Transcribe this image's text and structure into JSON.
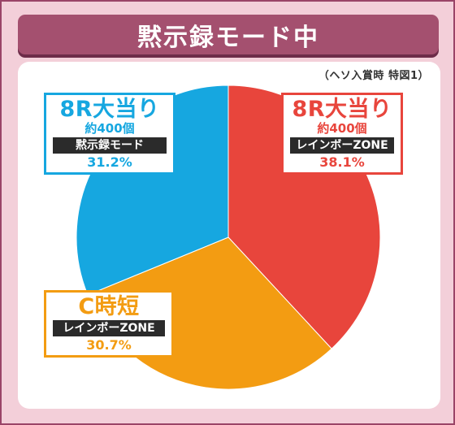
{
  "title": "黙示録モード中",
  "note": "（ヘソ入賞時 特図1）",
  "chart_data": {
    "type": "pie",
    "slices": [
      {
        "label": "8R大当り",
        "sub": "約400個",
        "tag": "レインボーZONE",
        "value": 38.1,
        "value_label": "38.1%",
        "color": "#e8453c"
      },
      {
        "label": "C時短",
        "sub": "",
        "tag": "レインボーZONE",
        "value": 30.7,
        "value_label": "30.7%",
        "color": "#f39c12"
      },
      {
        "label": "8R大当り",
        "sub": "約400個",
        "tag": "黙示録モード",
        "value": 31.2,
        "value_label": "31.2%",
        "color": "#16a7e0"
      }
    ],
    "start_angle_deg": 0,
    "direction": "clockwise"
  }
}
